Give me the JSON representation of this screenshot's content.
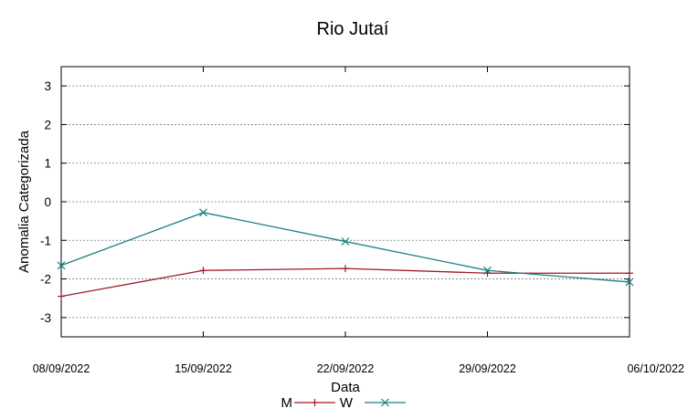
{
  "chart_data": {
    "type": "line",
    "title": "Rio Jutaí",
    "xlabel": "Data",
    "ylabel": "Anomalia Categorizada",
    "x": [
      "08/09/2022",
      "15/09/2022",
      "22/09/2022",
      "29/09/2022",
      "06/10/2022"
    ],
    "ylim": [
      -3.5,
      3.5
    ],
    "yticks": [
      3,
      2,
      1,
      0,
      -1,
      -2,
      -3
    ],
    "grid": true,
    "legend_position": "bottom-center",
    "series": [
      {
        "name": "M",
        "color": "#a0182a",
        "marker": "plus",
        "values": [
          -2.45,
          -1.78,
          -1.73,
          -1.85,
          -1.85
        ]
      },
      {
        "name": "W",
        "color": "#1a7f80",
        "marker": "cross",
        "values": [
          -1.65,
          -0.28,
          -1.03,
          -1.78,
          -2.08
        ]
      }
    ]
  }
}
